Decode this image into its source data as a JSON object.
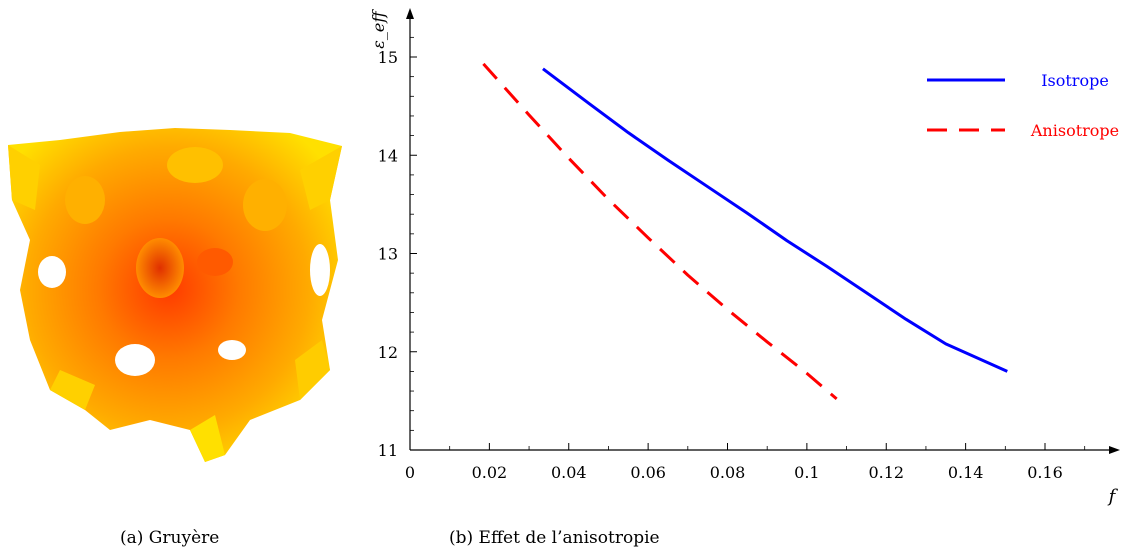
{
  "captions": {
    "a": "(a) Gruyère",
    "b": "(b) Effet de l’anisotropie"
  },
  "image_a": {
    "icon": "gyroid-surface-render",
    "colors": {
      "light": "#ffe000",
      "mid": "#ffa500",
      "dark": "#ff4000"
    }
  },
  "chart_data": {
    "type": "line",
    "xlabel": "f",
    "ylabel": "ε_eff",
    "xlim": [
      0,
      0.18
    ],
    "ylim": [
      11,
      15.4
    ],
    "xticks": [
      "0",
      "0.02",
      "0.04",
      "0.06",
      "0.08",
      "0.1",
      "0.12",
      "0.14",
      "0.16"
    ],
    "xtick_values": [
      0,
      0.02,
      0.04,
      0.06,
      0.08,
      0.1,
      0.12,
      0.14,
      0.16
    ],
    "yticks": [
      "11",
      "12",
      "13",
      "14",
      "15"
    ],
    "ytick_values": [
      11,
      12,
      13,
      14,
      15
    ],
    "grid": false,
    "legend_position": "top-right",
    "series": [
      {
        "name": "Isotrope",
        "color": "#0000ff",
        "dash": "solid",
        "x": [
          0.0335,
          0.045,
          0.055,
          0.065,
          0.075,
          0.085,
          0.095,
          0.105,
          0.115,
          0.125,
          0.135,
          0.1505
        ],
        "y": [
          14.88,
          14.53,
          14.23,
          13.95,
          13.68,
          13.41,
          13.13,
          12.87,
          12.6,
          12.33,
          12.08,
          11.8
        ]
      },
      {
        "name": "Anisotrope",
        "color": "#ff0000",
        "dash": "dashed",
        "x": [
          0.0185,
          0.03,
          0.04,
          0.05,
          0.06,
          0.07,
          0.08,
          0.09,
          0.1,
          0.1075
        ],
        "y": [
          14.93,
          14.41,
          13.97,
          13.55,
          13.16,
          12.78,
          12.43,
          12.1,
          11.78,
          11.52
        ]
      }
    ]
  }
}
